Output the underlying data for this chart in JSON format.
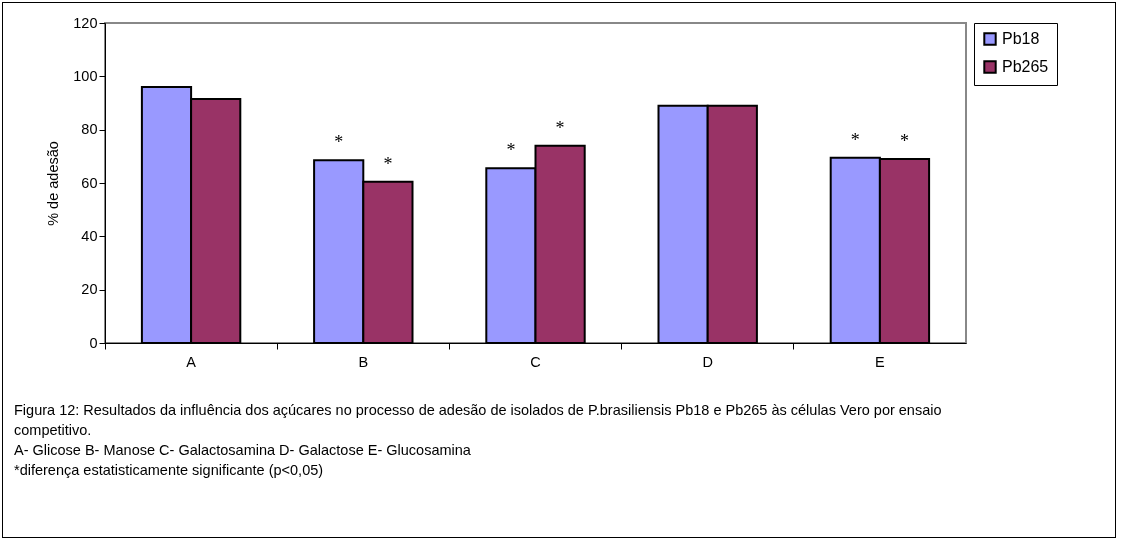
{
  "chart_data": {
    "type": "bar",
    "ylabel": "% de adesão",
    "categories": [
      "A",
      "B",
      "C",
      "D",
      "E"
    ],
    "series": [
      {
        "name": "Pb18",
        "color": "#9999ff",
        "values": [
          96,
          68.5,
          65.5,
          89,
          69.5
        ]
      },
      {
        "name": "Pb265",
        "color": "#993366",
        "values": [
          91.5,
          60.5,
          74,
          89,
          69
        ]
      }
    ],
    "ylim": [
      0,
      120
    ],
    "yticks": [
      0,
      20,
      40,
      60,
      80,
      100,
      120
    ],
    "grid": false,
    "legend": "right",
    "annotations": [
      {
        "text": "*",
        "x": "B",
        "y": 68.5
      },
      {
        "text": "*",
        "x": "B",
        "y": 60.5
      },
      {
        "text": "*",
        "x": "C",
        "y": 65.5
      },
      {
        "text": "*",
        "x": "C",
        "y": 74
      },
      {
        "text": "*",
        "x": "E",
        "y": 69.5
      },
      {
        "text": "*",
        "x": "E",
        "y": 69
      },
      "Figura 12: Resultados da influência dos açúcares no processo de adesão de isolados de P.brasiliensis Pb18 e Pb265 às células Vero por ensaio competitivo.",
      "A- Glicose   B- Manose  C- Galactosamina  D- Galactose  E- Glucosamina",
      "*diferença estatisticamente significante (p<0,05)"
    ]
  }
}
